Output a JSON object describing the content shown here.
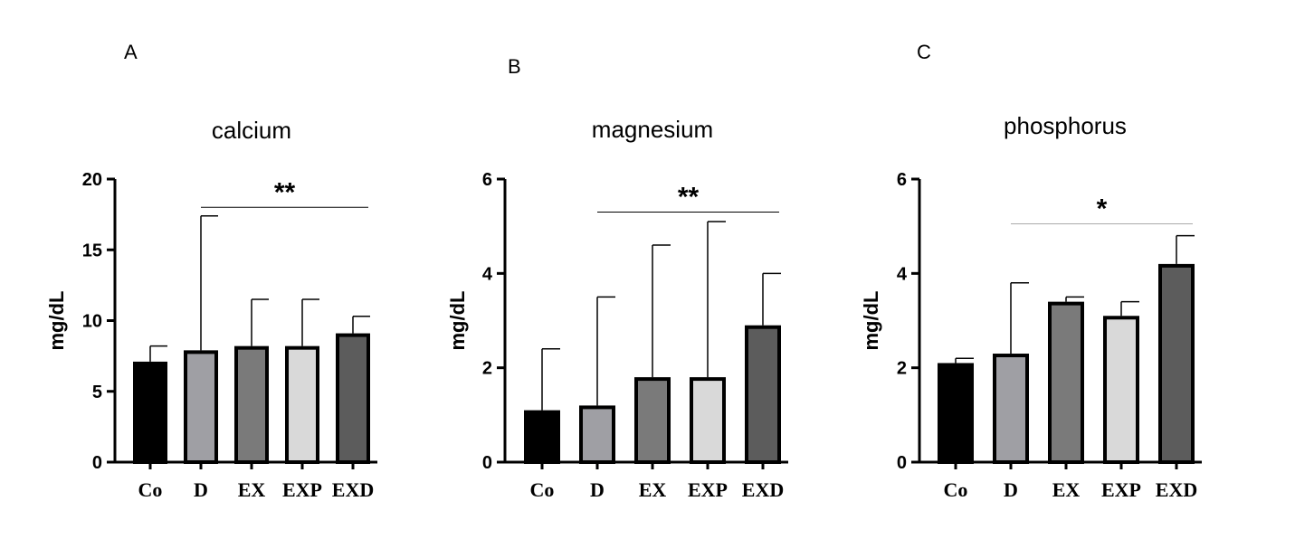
{
  "chart_data": [
    {
      "type": "bar",
      "panel": "A",
      "title": "calcium",
      "ylabel": "mg/dL",
      "ylim": [
        0,
        20
      ],
      "yticks": [
        0,
        5,
        10,
        15,
        20
      ],
      "categories": [
        "Co",
        "D",
        "EX",
        "EXP",
        "EXD"
      ],
      "values": [
        7.1,
        7.9,
        8.2,
        8.2,
        9.1
      ],
      "error_upper": [
        8.2,
        17.4,
        11.5,
        11.5,
        10.3
      ],
      "bar_colors": [
        "#000000",
        "#9f9fa4",
        "#7a7a7a",
        "#d9d9d9",
        "#5c5c5c"
      ],
      "significance": {
        "label": "**",
        "from": "D",
        "to": "EXD",
        "y": 18.0
      }
    },
    {
      "type": "bar",
      "panel": "B",
      "title": "magnesium",
      "ylabel": "mg/dL",
      "ylim": [
        0,
        6
      ],
      "yticks": [
        0,
        2,
        4,
        6
      ],
      "categories": [
        "Co",
        "D",
        "EX",
        "EXP",
        "EXD"
      ],
      "values": [
        1.1,
        1.2,
        1.8,
        1.8,
        2.9
      ],
      "error_upper": [
        2.4,
        3.5,
        4.6,
        5.1,
        4.0
      ],
      "bar_colors": [
        "#000000",
        "#9f9fa4",
        "#7a7a7a",
        "#d9d9d9",
        "#5c5c5c"
      ],
      "significance": {
        "label": "**",
        "from": "D",
        "to": "EXD",
        "y": 5.3
      }
    },
    {
      "type": "bar",
      "panel": "C",
      "title": "phosphorus",
      "ylabel": "mg/dL",
      "ylim": [
        0,
        6
      ],
      "yticks": [
        0,
        2,
        4,
        6
      ],
      "categories": [
        "Co",
        "D",
        "EX",
        "EXP",
        "EXD"
      ],
      "values": [
        2.1,
        2.3,
        3.4,
        3.1,
        4.2
      ],
      "error_upper": [
        2.2,
        3.8,
        3.5,
        3.4,
        4.8
      ],
      "bar_colors": [
        "#000000",
        "#9f9fa4",
        "#7a7a7a",
        "#d9d9d9",
        "#5c5c5c"
      ],
      "significance": {
        "label": "*",
        "from": "D",
        "to": "EXD",
        "y": 5.05
      }
    }
  ]
}
